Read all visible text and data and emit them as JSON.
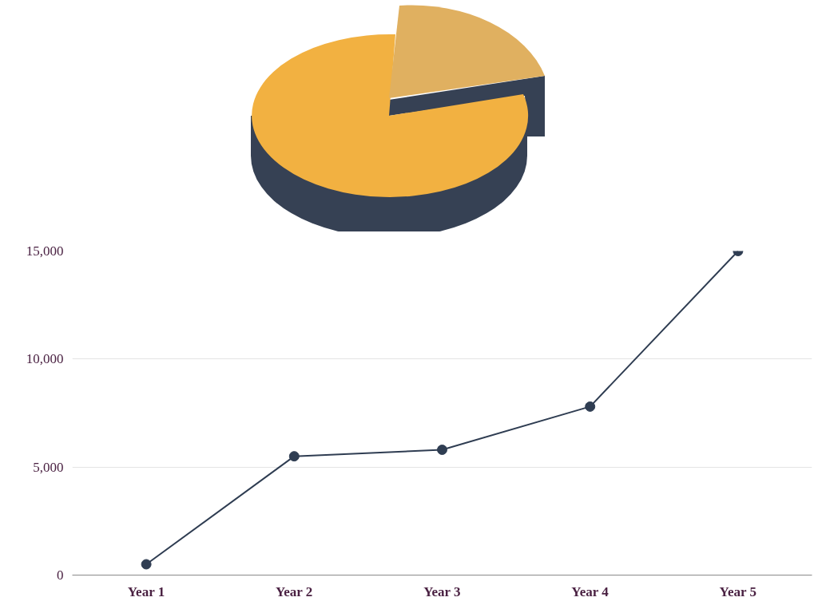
{
  "chart_data": {
    "type": "line",
    "categories": [
      "Year 1",
      "Year 2",
      "Year 3",
      "Year 4",
      "Year 5"
    ],
    "series": [
      {
        "color": "#2f3d52",
        "values": [
          500,
          5500,
          5800,
          7800,
          15000
        ]
      }
    ],
    "ylim": [
      0,
      15000
    ],
    "yticks": [
      {
        "value": 0,
        "label": "0"
      },
      {
        "value": 5000,
        "label": "5,000"
      },
      {
        "value": 10000,
        "label": "10,000"
      },
      {
        "value": 15000,
        "label": "15,000"
      }
    ],
    "grid": "y",
    "marker": "circle",
    "line_style": "solid"
  }
}
